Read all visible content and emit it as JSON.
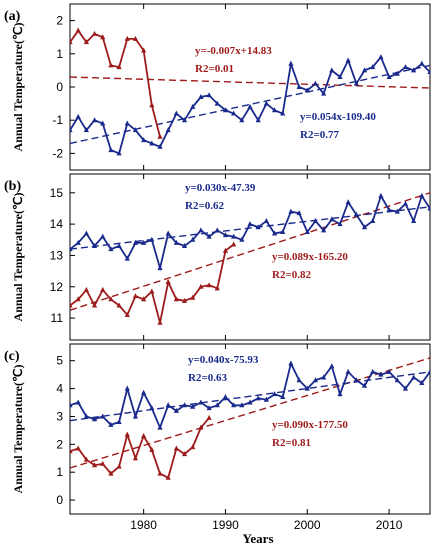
{
  "figure": {
    "xlabel": "Years"
  },
  "colors": {
    "red": "#9e1b1b",
    "blue": "#1a2a8c"
  },
  "chart_data": [
    {
      "type": "line",
      "panel_label": "(a)",
      "ylabel": "Annual Temperature(℃)",
      "xlim": [
        1971,
        2015
      ],
      "ylim": [
        -2.5,
        2.5
      ],
      "yticks": [
        -2,
        -1,
        0,
        1,
        2
      ],
      "xticks": [
        1980,
        1990,
        2000,
        2010
      ],
      "series": [
        {
          "color": "red",
          "x": [
            1971,
            1972,
            1973,
            1974,
            1975,
            1976,
            1977,
            1978,
            1979,
            1980,
            1981,
            1982
          ],
          "values": [
            1.35,
            1.7,
            1.35,
            1.6,
            1.5,
            0.65,
            0.6,
            1.45,
            1.45,
            1.1,
            -0.55,
            -1.5
          ]
        },
        {
          "color": "blue",
          "x": [
            1971,
            1972,
            1973,
            1974,
            1975,
            1976,
            1977,
            1978,
            1979,
            1980,
            1981,
            1982,
            1983,
            1984,
            1985,
            1986,
            1987,
            1988,
            1989,
            1990,
            1991,
            1992,
            1993,
            1994,
            1995,
            1996,
            1997,
            1998,
            1999,
            2000,
            2001,
            2002,
            2003,
            2004,
            2005,
            2006,
            2007,
            2008,
            2009,
            2010,
            2011,
            2012,
            2013,
            2014,
            2015
          ],
          "values": [
            -1.3,
            -0.9,
            -1.3,
            -1.0,
            -1.1,
            -1.9,
            -2.0,
            -1.1,
            -1.3,
            -1.6,
            -1.7,
            -1.8,
            -1.3,
            -0.8,
            -1.0,
            -0.6,
            -0.3,
            -0.25,
            -0.5,
            -0.7,
            -0.8,
            -1.0,
            -0.6,
            -1.0,
            -0.5,
            -0.7,
            -0.8,
            0.7,
            0.0,
            -0.1,
            0.1,
            -0.2,
            0.5,
            0.3,
            0.8,
            0.1,
            0.5,
            0.6,
            0.9,
            0.3,
            0.4,
            0.6,
            0.5,
            0.7,
            0.45
          ]
        }
      ],
      "trendlines": [
        {
          "color": "red",
          "equation": "y=-0.007x+14.83",
          "r2": "R2=0.01",
          "from": [
            1971,
            0.3
          ],
          "to": [
            2015,
            -0.03
          ]
        },
        {
          "color": "blue",
          "equation": "y=0.054x-109.40",
          "r2": "R2=0.77",
          "from": [
            1971,
            -1.7
          ],
          "to": [
            2015,
            0.65
          ]
        }
      ]
    },
    {
      "type": "line",
      "panel_label": "(b)",
      "ylabel": "Annual Temperature(℃)",
      "xlim": [
        1971,
        2015
      ],
      "ylim": [
        10.3,
        15.6
      ],
      "yticks": [
        11,
        12,
        13,
        14,
        15
      ],
      "xticks": [
        1980,
        1990,
        2000,
        2010
      ],
      "series": [
        {
          "color": "red",
          "x": [
            1971,
            1972,
            1973,
            1974,
            1975,
            1976,
            1977,
            1978,
            1979,
            1980,
            1981,
            1982,
            1983,
            1984,
            1985,
            1986,
            1987,
            1988,
            1989,
            1990,
            1991
          ],
          "values": [
            11.4,
            11.6,
            11.9,
            11.4,
            11.9,
            11.6,
            11.4,
            11.1,
            11.7,
            11.6,
            11.85,
            10.85,
            12.15,
            11.6,
            11.55,
            11.65,
            12.0,
            12.05,
            11.95,
            13.15,
            13.35
          ]
        },
        {
          "color": "blue",
          "x": [
            1971,
            1972,
            1973,
            1974,
            1975,
            1976,
            1977,
            1978,
            1979,
            1980,
            1981,
            1982,
            1983,
            1984,
            1985,
            1986,
            1987,
            1988,
            1989,
            1990,
            1991,
            1992,
            1993,
            1994,
            1995,
            1996,
            1997,
            1998,
            1999,
            2000,
            2001,
            2002,
            2003,
            2004,
            2005,
            2006,
            2007,
            2008,
            2009,
            2010,
            2011,
            2012,
            2013,
            2014,
            2015
          ],
          "values": [
            13.2,
            13.4,
            13.7,
            13.3,
            13.6,
            13.2,
            13.3,
            12.9,
            13.4,
            13.4,
            13.5,
            12.6,
            13.7,
            13.4,
            13.3,
            13.5,
            13.8,
            13.6,
            13.8,
            13.65,
            13.6,
            13.5,
            14.0,
            13.9,
            14.1,
            13.7,
            13.75,
            14.4,
            14.35,
            13.75,
            14.1,
            13.8,
            14.15,
            14.0,
            14.7,
            14.3,
            13.9,
            14.1,
            14.9,
            14.45,
            14.4,
            14.65,
            14.1,
            14.9,
            14.5
          ]
        }
      ],
      "trendlines": [
        {
          "color": "red",
          "equation": "y=0.089x-165.20",
          "r2": "R2=0.82",
          "from": [
            1971,
            11.25
          ],
          "to": [
            2015,
            15.0
          ]
        },
        {
          "color": "blue",
          "equation": "y=0.030x-47.39",
          "r2": "R2=0.62",
          "from": [
            1971,
            13.2
          ],
          "to": [
            2015,
            14.55
          ]
        }
      ]
    },
    {
      "type": "line",
      "panel_label": "(c)",
      "ylabel": "Annual Temperature(℃)",
      "xlim": [
        1971,
        2015
      ],
      "ylim": [
        -0.5,
        5.6
      ],
      "yticks": [
        0,
        1,
        2,
        3,
        4,
        5
      ],
      "xticks": [
        1980,
        1990,
        2000,
        2010
      ],
      "series": [
        {
          "color": "red",
          "x": [
            1971,
            1972,
            1973,
            1974,
            1975,
            1976,
            1977,
            1978,
            1979,
            1980,
            1981,
            1982,
            1983,
            1984,
            1985,
            1986,
            1987,
            1988
          ],
          "values": [
            1.75,
            1.85,
            1.45,
            1.25,
            1.3,
            0.95,
            1.2,
            2.35,
            1.5,
            2.3,
            1.8,
            0.95,
            0.8,
            1.85,
            1.65,
            1.9,
            2.6,
            2.95
          ]
        },
        {
          "color": "blue",
          "x": [
            1971,
            1972,
            1973,
            1974,
            1975,
            1976,
            1977,
            1978,
            1979,
            1980,
            1981,
            1982,
            1983,
            1984,
            1985,
            1986,
            1987,
            1988,
            1989,
            1990,
            1991,
            1992,
            1993,
            1994,
            1995,
            1996,
            1997,
            1998,
            1999,
            2000,
            2001,
            2002,
            2003,
            2004,
            2005,
            2006,
            2007,
            2008,
            2009,
            2010,
            2011,
            2012,
            2013,
            2014,
            2015
          ],
          "values": [
            3.4,
            3.5,
            3.0,
            2.9,
            3.0,
            2.7,
            2.8,
            4.0,
            3.0,
            3.85,
            3.3,
            2.6,
            3.4,
            3.2,
            3.4,
            3.35,
            3.5,
            3.3,
            3.4,
            3.7,
            3.4,
            3.4,
            3.5,
            3.65,
            3.6,
            3.8,
            3.7,
            4.9,
            4.3,
            4.0,
            4.3,
            4.4,
            4.8,
            3.8,
            4.6,
            4.3,
            4.1,
            4.6,
            4.5,
            4.6,
            4.3,
            4.0,
            4.4,
            4.2,
            4.6
          ]
        }
      ],
      "trendlines": [
        {
          "color": "red",
          "equation": "y=0.090x-177.50",
          "r2": "R2=0.81",
          "from": [
            1971,
            1.15
          ],
          "to": [
            2015,
            5.1
          ]
        },
        {
          "color": "blue",
          "equation": "y=0.040x-75.93",
          "r2": "R2=0.63",
          "from": [
            1971,
            2.85
          ],
          "to": [
            2015,
            4.6
          ]
        }
      ]
    }
  ]
}
